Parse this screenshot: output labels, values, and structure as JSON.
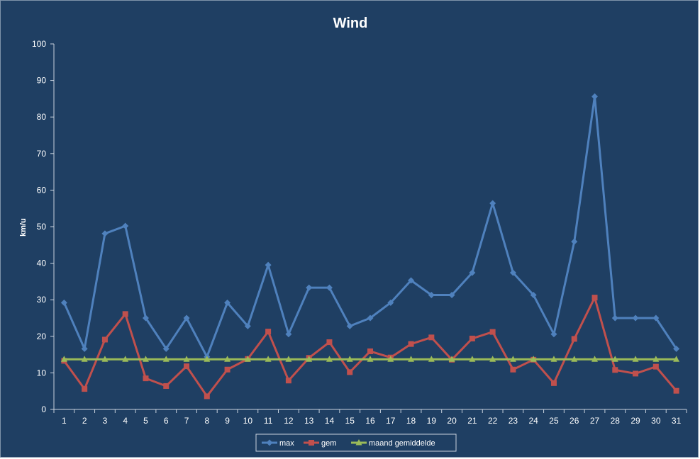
{
  "chart_data": {
    "type": "line",
    "title": "Wind",
    "ylabel": "km/u",
    "xlabel": "",
    "ylim": [
      0,
      100
    ],
    "yticks": [
      0,
      10,
      20,
      30,
      40,
      50,
      60,
      70,
      80,
      90,
      100
    ],
    "grid": false,
    "legend": "bottom",
    "x": [
      1,
      2,
      3,
      4,
      5,
      6,
      7,
      8,
      9,
      10,
      11,
      12,
      13,
      14,
      15,
      16,
      17,
      18,
      19,
      20,
      21,
      22,
      23,
      24,
      25,
      26,
      27,
      28,
      29,
      30,
      31
    ],
    "series": [
      {
        "name": "max",
        "color": "#4f81bd",
        "marker": "diamond",
        "values": [
          29.2,
          16.6,
          48.1,
          50.2,
          25.0,
          16.6,
          25.0,
          14.4,
          29.2,
          22.8,
          39.5,
          20.6,
          33.3,
          33.3,
          22.8,
          25.0,
          29.2,
          35.3,
          31.3,
          31.3,
          37.4,
          56.4,
          37.4,
          31.3,
          20.6,
          45.9,
          85.6,
          25.0,
          25.0,
          25.0,
          16.6
        ]
      },
      {
        "name": "gem",
        "color": "#c0504d",
        "marker": "square",
        "values": [
          13.3,
          5.6,
          19.1,
          26.1,
          8.5,
          6.4,
          11.8,
          3.6,
          10.9,
          13.8,
          21.3,
          7.9,
          14.1,
          18.4,
          10.2,
          15.9,
          14.2,
          17.9,
          19.7,
          13.6,
          19.4,
          21.2,
          10.9,
          13.6,
          7.2,
          19.3,
          30.6,
          10.8,
          9.8,
          11.7,
          5.1
        ]
      },
      {
        "name": "maand gemiddelde",
        "color": "#9bbb59",
        "marker": "triangle",
        "values": [
          13.7,
          13.7,
          13.7,
          13.7,
          13.7,
          13.7,
          13.7,
          13.7,
          13.7,
          13.7,
          13.7,
          13.7,
          13.7,
          13.7,
          13.7,
          13.7,
          13.7,
          13.7,
          13.7,
          13.7,
          13.7,
          13.7,
          13.7,
          13.7,
          13.7,
          13.7,
          13.7,
          13.7,
          13.7,
          13.7,
          13.7
        ]
      }
    ]
  }
}
